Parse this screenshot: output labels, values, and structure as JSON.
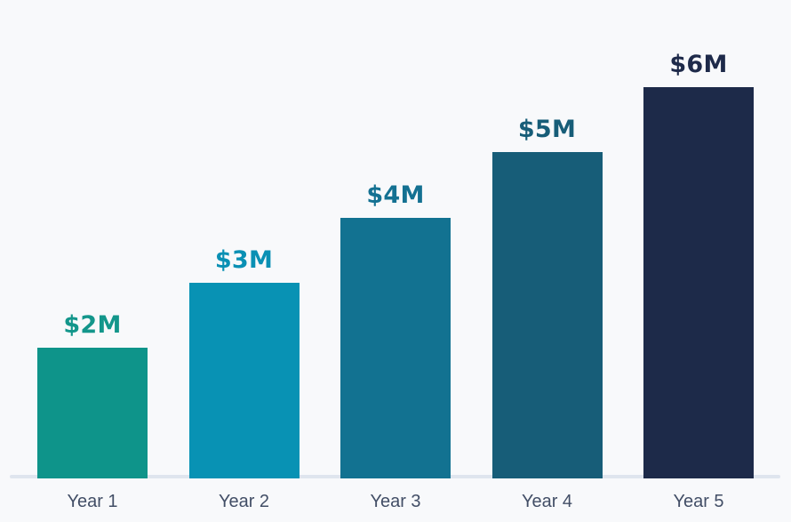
{
  "chart_data": {
    "type": "bar",
    "categories": [
      "Year 1",
      "Year 2",
      "Year 3",
      "Year 4",
      "Year 5"
    ],
    "values": [
      2,
      3,
      4,
      5,
      6
    ],
    "value_labels": [
      "$2M",
      "$3M",
      "$4M",
      "$5M",
      "$6M"
    ],
    "unit": "$M",
    "title": "",
    "xlabel": "",
    "ylabel": "",
    "ylim": [
      0,
      6
    ],
    "grid": false,
    "legend": false,
    "bar_colors": [
      "#0e948a",
      "#0892b4",
      "#127291",
      "#175d78",
      "#1d2a49"
    ],
    "label_colors": [
      "#13968b",
      "#0a90b4",
      "#147192",
      "#175d78",
      "#1e2a4a"
    ]
  },
  "style": {
    "background_color": "#f8f9fb",
    "baseline_color": "#dfe5ee",
    "category_label_color": "#424e66"
  }
}
